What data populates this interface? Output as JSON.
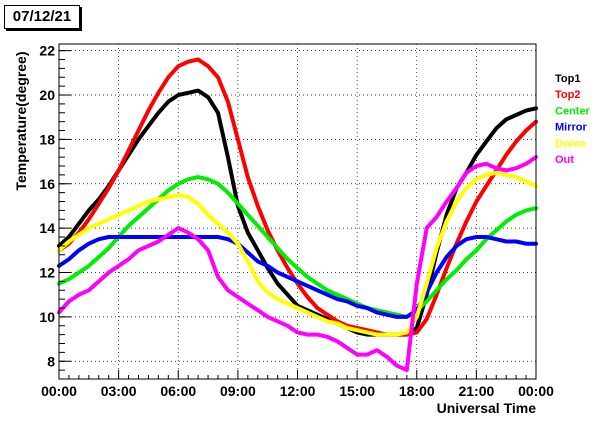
{
  "chart_data": {
    "type": "line",
    "title": "07/12/21",
    "xlabel": "Universal Time",
    "ylabel": "Temperature(degree)",
    "xlim": [
      0,
      24
    ],
    "ylim": [
      7.2,
      22.3
    ],
    "x_ticks": [
      "00:00",
      "03:00",
      "06:00",
      "09:00",
      "12:00",
      "15:00",
      "18:00",
      "21:00",
      "00:00"
    ],
    "y_ticks": [
      8,
      10,
      12,
      14,
      16,
      18,
      20,
      22
    ],
    "grid": true,
    "legend_position": "right",
    "series": [
      {
        "name": "Top1",
        "color": "#000000",
        "x": [
          0,
          0.5,
          1,
          1.5,
          2,
          2.5,
          3,
          3.5,
          4,
          4.5,
          5,
          5.5,
          6,
          6.5,
          7,
          7.5,
          8,
          8.5,
          9,
          9.5,
          10,
          10.5,
          11,
          11.5,
          12,
          12.5,
          13,
          13.5,
          14,
          14.5,
          15,
          15.5,
          16,
          16.5,
          17,
          17.5,
          18,
          18.5,
          19,
          19.5,
          20,
          20.5,
          21,
          21.5,
          22,
          22.5,
          23,
          23.5,
          24
        ],
        "y": [
          13.2,
          13.6,
          14.2,
          14.8,
          15.3,
          15.9,
          16.6,
          17.3,
          18.0,
          18.6,
          19.2,
          19.7,
          20.0,
          20.1,
          20.2,
          19.9,
          19.2,
          17.2,
          15.0,
          13.8,
          13.0,
          12.2,
          11.5,
          11.0,
          10.5,
          10.3,
          10.1,
          9.9,
          9.7,
          9.5,
          9.3,
          9.2,
          9.2,
          9.2,
          9.2,
          9.2,
          9.5,
          11.0,
          12.9,
          14.6,
          15.8,
          16.5,
          17.3,
          17.9,
          18.5,
          18.9,
          19.1,
          19.3,
          19.4
        ]
      },
      {
        "name": "Top2",
        "color": "#ff0000",
        "x": [
          0,
          0.5,
          1,
          1.5,
          2,
          2.5,
          3,
          3.5,
          4,
          4.5,
          5,
          5.5,
          6,
          6.5,
          7,
          7.5,
          8,
          8.5,
          9,
          9.5,
          10,
          10.5,
          11,
          11.5,
          12,
          12.5,
          13,
          13.5,
          14,
          14.5,
          15,
          15.5,
          16,
          16.5,
          17,
          17.5,
          18,
          18.5,
          19,
          19.5,
          20,
          20.5,
          21,
          21.5,
          22,
          22.5,
          23,
          23.5,
          24
        ],
        "y": [
          13.0,
          13.3,
          13.8,
          14.4,
          15.1,
          15.8,
          16.6,
          17.5,
          18.4,
          19.3,
          20.1,
          20.8,
          21.3,
          21.5,
          21.6,
          21.3,
          20.8,
          19.7,
          18.0,
          16.3,
          15.0,
          13.9,
          13.0,
          12.2,
          11.5,
          10.9,
          10.4,
          10.1,
          9.8,
          9.6,
          9.5,
          9.4,
          9.3,
          9.2,
          9.2,
          9.2,
          9.3,
          9.9,
          11.0,
          12.2,
          13.3,
          14.3,
          15.2,
          15.9,
          16.6,
          17.3,
          17.9,
          18.4,
          18.8
        ]
      },
      {
        "name": "Center",
        "color": "#00ee00",
        "x": [
          0,
          0.5,
          1,
          1.5,
          2,
          2.5,
          3,
          3.5,
          4,
          4.5,
          5,
          5.5,
          6,
          6.5,
          7,
          7.5,
          8,
          8.5,
          9,
          9.5,
          10,
          10.5,
          11,
          11.5,
          12,
          12.5,
          13,
          13.5,
          14,
          14.5,
          15,
          15.5,
          16,
          16.5,
          17,
          17.5,
          18,
          18.5,
          19,
          19.5,
          20,
          20.5,
          21,
          21.5,
          22,
          22.5,
          23,
          23.5,
          24
        ],
        "y": [
          11.5,
          11.7,
          12.0,
          12.3,
          12.7,
          13.1,
          13.6,
          14.1,
          14.5,
          14.9,
          15.3,
          15.7,
          16.0,
          16.2,
          16.3,
          16.2,
          16.0,
          15.6,
          15.1,
          14.6,
          14.1,
          13.6,
          13.1,
          12.6,
          12.2,
          11.8,
          11.5,
          11.2,
          11.0,
          10.8,
          10.6,
          10.4,
          10.3,
          10.2,
          10.1,
          10.0,
          10.3,
          10.7,
          11.2,
          11.7,
          12.1,
          12.6,
          13.0,
          13.5,
          13.9,
          14.3,
          14.6,
          14.8,
          14.9
        ]
      },
      {
        "name": "Mirror",
        "color": "#0000ff",
        "x": [
          0,
          0.5,
          1,
          1.5,
          2,
          2.5,
          3,
          3.5,
          4,
          4.5,
          5,
          5.5,
          6,
          6.5,
          7,
          7.5,
          8,
          8.5,
          9,
          9.5,
          10,
          10.5,
          11,
          11.5,
          12,
          12.5,
          13,
          13.5,
          14,
          14.5,
          15,
          15.5,
          16,
          16.5,
          17,
          17.5,
          18,
          18.5,
          19,
          19.5,
          20,
          20.5,
          21,
          21.5,
          22,
          22.5,
          23,
          23.5,
          24
        ],
        "y": [
          12.3,
          12.6,
          13.0,
          13.3,
          13.5,
          13.6,
          13.6,
          13.6,
          13.6,
          13.6,
          13.6,
          13.6,
          13.6,
          13.6,
          13.6,
          13.6,
          13.6,
          13.5,
          13.3,
          12.9,
          12.5,
          12.3,
          12.0,
          11.8,
          11.6,
          11.4,
          11.2,
          11.0,
          10.8,
          10.7,
          10.5,
          10.4,
          10.2,
          10.1,
          10.0,
          10.0,
          10.3,
          11.1,
          12.0,
          12.7,
          13.2,
          13.5,
          13.6,
          13.6,
          13.5,
          13.4,
          13.4,
          13.3,
          13.3
        ]
      },
      {
        "name": "Dome",
        "color": "#ffff00",
        "x": [
          0,
          0.5,
          1,
          1.5,
          2,
          2.5,
          3,
          3.5,
          4,
          4.5,
          5,
          5.5,
          6,
          6.5,
          7,
          7.5,
          8,
          8.5,
          9,
          9.5,
          10,
          10.5,
          11,
          11.5,
          12,
          12.5,
          13,
          13.5,
          14,
          14.5,
          15,
          15.5,
          16,
          16.5,
          17,
          17.5,
          18,
          18.5,
          19,
          19.5,
          20,
          20.5,
          21,
          21.5,
          22,
          22.5,
          23,
          23.5,
          24
        ],
        "y": [
          13.0,
          13.4,
          13.7,
          14.0,
          14.2,
          14.4,
          14.6,
          14.8,
          15.0,
          15.2,
          15.3,
          15.4,
          15.5,
          15.4,
          15.1,
          14.6,
          14.2,
          13.8,
          13.3,
          12.5,
          11.6,
          11.1,
          10.8,
          10.6,
          10.4,
          10.2,
          10.0,
          9.8,
          9.7,
          9.5,
          9.4,
          9.3,
          9.2,
          9.2,
          9.2,
          9.3,
          10.0,
          11.5,
          13.1,
          14.3,
          15.2,
          15.8,
          16.2,
          16.4,
          16.5,
          16.4,
          16.3,
          16.1,
          15.9
        ]
      },
      {
        "name": "Out",
        "color": "#ff00ff",
        "x": [
          0,
          0.5,
          1,
          1.5,
          2,
          2.5,
          3,
          3.5,
          4,
          4.5,
          5,
          5.5,
          6,
          6.5,
          7,
          7.5,
          8,
          8.5,
          9,
          9.5,
          10,
          10.5,
          11,
          11.5,
          12,
          12.5,
          13,
          13.5,
          14,
          14.5,
          15,
          15.5,
          16,
          16.5,
          17,
          17.5,
          18,
          18.5,
          19,
          19.5,
          20,
          20.5,
          21,
          21.5,
          22,
          22.5,
          23,
          23.5,
          24
        ],
        "y": [
          10.2,
          10.7,
          11.0,
          11.2,
          11.6,
          12.0,
          12.3,
          12.6,
          13.0,
          13.2,
          13.4,
          13.7,
          14.0,
          13.8,
          13.5,
          13.0,
          11.8,
          11.2,
          10.9,
          10.6,
          10.3,
          10.0,
          9.8,
          9.6,
          9.3,
          9.2,
          9.2,
          9.1,
          8.9,
          8.6,
          8.3,
          8.3,
          8.5,
          8.2,
          7.8,
          7.6,
          11.5,
          14.0,
          14.5,
          15.2,
          15.8,
          16.5,
          16.8,
          16.9,
          16.7,
          16.6,
          16.7,
          16.9,
          17.2
        ]
      }
    ]
  }
}
